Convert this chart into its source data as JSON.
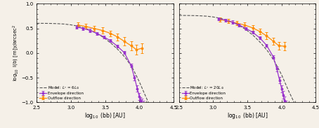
{
  "xlim": [
    2.5,
    4.5
  ],
  "ylim": [
    -1.0,
    1.0
  ],
  "envelope_color": "#9933cc",
  "outflow_color": "#ff8c00",
  "model_color": "#555555",
  "bg_color": "#f5f0e8",
  "legend_envelope": "Envelope direction",
  "legend_outflow": "Outflow direction",
  "panel1_model_label": "Model: $L_* = 6L_\\odot$",
  "panel2_model_label": "Model: $L_* = 20L_\\odot$",
  "panel1_envelope_x": [
    3.08,
    3.18,
    3.28,
    3.38,
    3.48,
    3.58,
    3.68,
    3.78,
    3.88,
    3.93,
    3.97,
    4.0,
    4.02,
    4.04,
    4.06
  ],
  "panel1_envelope_y": [
    0.53,
    0.5,
    0.46,
    0.4,
    0.33,
    0.25,
    0.14,
    0.01,
    -0.25,
    -0.5,
    -0.72,
    -0.88,
    -0.97,
    -1.02,
    -1.05
  ],
  "panel1_envelope_yerr": [
    0.03,
    0.03,
    0.03,
    0.03,
    0.03,
    0.03,
    0.03,
    0.03,
    0.04,
    0.05,
    0.06,
    0.07,
    0.08,
    0.09,
    0.09
  ],
  "panel1_outflow_x": [
    3.1,
    3.22,
    3.34,
    3.46,
    3.58,
    3.68,
    3.78,
    3.88,
    3.96,
    4.04
  ],
  "panel1_outflow_y": [
    0.57,
    0.54,
    0.5,
    0.46,
    0.4,
    0.33,
    0.24,
    0.15,
    0.07,
    0.1
  ],
  "panel1_outflow_yerr": [
    0.05,
    0.05,
    0.05,
    0.06,
    0.06,
    0.07,
    0.08,
    0.09,
    0.1,
    0.1
  ],
  "panel1_model_x": [
    2.5,
    2.6,
    2.7,
    2.8,
    2.9,
    3.0,
    3.1,
    3.2,
    3.3,
    3.4,
    3.5,
    3.6,
    3.7,
    3.8,
    3.9,
    4.0,
    4.1,
    4.2
  ],
  "panel1_model_y": [
    0.605,
    0.604,
    0.602,
    0.598,
    0.59,
    0.574,
    0.548,
    0.51,
    0.455,
    0.385,
    0.295,
    0.185,
    0.055,
    -0.1,
    -0.3,
    -0.58,
    -0.9,
    -1.2
  ],
  "panel2_envelope_x": [
    3.08,
    3.18,
    3.28,
    3.38,
    3.48,
    3.58,
    3.68,
    3.78,
    3.88,
    3.93,
    3.97,
    4.0,
    4.02,
    4.04,
    4.06
  ],
  "panel2_envelope_y": [
    0.7,
    0.67,
    0.63,
    0.57,
    0.5,
    0.42,
    0.31,
    0.16,
    -0.08,
    -0.32,
    -0.55,
    -0.72,
    -0.85,
    -0.97,
    -1.05
  ],
  "panel2_envelope_yerr": [
    0.03,
    0.03,
    0.03,
    0.03,
    0.03,
    0.03,
    0.03,
    0.03,
    0.04,
    0.05,
    0.06,
    0.07,
    0.08,
    0.09,
    0.09
  ],
  "panel2_outflow_x": [
    3.1,
    3.22,
    3.34,
    3.46,
    3.58,
    3.68,
    3.78,
    3.88,
    3.96,
    4.04
  ],
  "panel2_outflow_y": [
    0.68,
    0.65,
    0.61,
    0.57,
    0.51,
    0.44,
    0.35,
    0.24,
    0.15,
    0.14
  ],
  "panel2_outflow_yerr": [
    0.04,
    0.04,
    0.04,
    0.05,
    0.05,
    0.06,
    0.07,
    0.07,
    0.08,
    0.09
  ],
  "panel2_model_x": [
    2.5,
    2.6,
    2.7,
    2.8,
    2.9,
    3.0,
    3.1,
    3.2,
    3.3,
    3.4,
    3.5,
    3.6,
    3.7,
    3.8,
    3.9,
    4.0,
    4.1,
    4.2
  ],
  "panel2_model_y": [
    0.765,
    0.764,
    0.762,
    0.758,
    0.75,
    0.734,
    0.708,
    0.67,
    0.615,
    0.545,
    0.455,
    0.34,
    0.2,
    0.035,
    -0.175,
    -0.44,
    -0.76,
    -1.05
  ]
}
